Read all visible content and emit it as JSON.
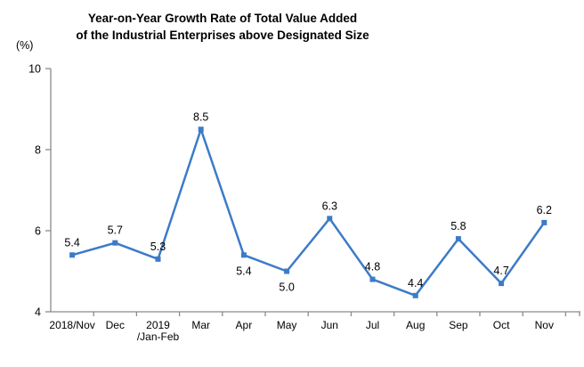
{
  "chart_data": {
    "type": "line",
    "title_lines": [
      "Year-on-Year Growth Rate of Total Value Added",
      "of the Industrial Enterprises above Designated Size"
    ],
    "unit_label": "(%)",
    "categories": [
      "2018/Nov",
      "Dec",
      "2019\n/Jan-Feb",
      "Mar",
      "Apr",
      "May",
      "Jun",
      "Jul",
      "Aug",
      "Sep",
      "Oct",
      "Nov"
    ],
    "series": [
      {
        "name": "year-on-year-growth-rate",
        "values": [
          5.4,
          5.7,
          5.3,
          8.5,
          5.4,
          5.0,
          6.3,
          4.8,
          4.4,
          5.8,
          4.7,
          6.2
        ],
        "color": "#3C7BC8",
        "marker": "square"
      }
    ],
    "data_labels": [
      "5.4",
      "5.7",
      "5.3",
      "8.5",
      "5.4",
      "5.0",
      "6.3",
      "4.8",
      "4.4",
      "5.8",
      "4.7",
      "6.2"
    ],
    "data_label_positions": [
      "above",
      "above",
      "above",
      "above",
      "below",
      "below",
      "above",
      "above",
      "above",
      "above",
      "above",
      "above"
    ],
    "y_axis": {
      "min": 4,
      "max": 10,
      "tick_labels": [
        "4",
        "6",
        "8",
        "10"
      ]
    },
    "xlabel": "",
    "ylabel": "(%)",
    "ylim": [
      4,
      10
    ],
    "grid": false,
    "legend_position": "none",
    "axis_color": "#8A8A8A",
    "text_color": "#000000",
    "background": "#FFFFFF"
  }
}
